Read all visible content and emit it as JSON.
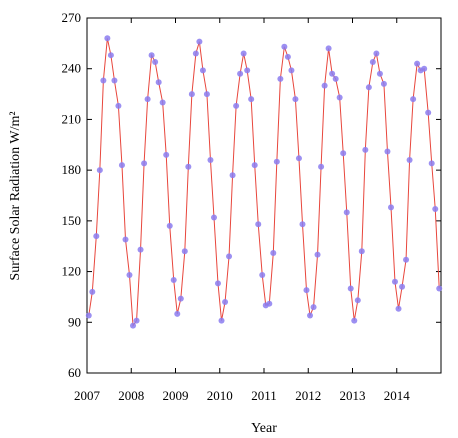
{
  "chart_data": {
    "type": "line",
    "title": "",
    "xlabel": "Year",
    "ylabel": "Surface Solar Radiation W/m²",
    "xlim": [
      2007,
      2015
    ],
    "ylim": [
      60,
      270
    ],
    "x_ticks": [
      "2007",
      "2008",
      "2009",
      "2010",
      "2011",
      "2012",
      "2013",
      "2014"
    ],
    "y_ticks": [
      "60",
      "90",
      "120",
      "150",
      "180",
      "210",
      "240",
      "270"
    ],
    "grid": false,
    "legend": "none",
    "colors": {
      "line": "#e8463c",
      "marker": "#8b7cf0"
    },
    "series": [
      {
        "name": "",
        "x": [
          2007.04,
          2007.12,
          2007.21,
          2007.29,
          2007.37,
          2007.46,
          2007.54,
          2007.62,
          2007.71,
          2007.79,
          2007.87,
          2007.96,
          2008.04,
          2008.12,
          2008.21,
          2008.29,
          2008.37,
          2008.46,
          2008.54,
          2008.62,
          2008.71,
          2008.79,
          2008.87,
          2008.96,
          2009.04,
          2009.12,
          2009.21,
          2009.29,
          2009.37,
          2009.46,
          2009.54,
          2009.62,
          2009.71,
          2009.79,
          2009.87,
          2009.96,
          2010.04,
          2010.12,
          2010.21,
          2010.29,
          2010.37,
          2010.46,
          2010.54,
          2010.62,
          2010.71,
          2010.79,
          2010.87,
          2010.96,
          2011.04,
          2011.12,
          2011.21,
          2011.29,
          2011.37,
          2011.46,
          2011.54,
          2011.62,
          2011.71,
          2011.79,
          2011.87,
          2011.96,
          2012.04,
          2012.12,
          2012.21,
          2012.29,
          2012.37,
          2012.46,
          2012.54,
          2012.62,
          2012.71,
          2012.79,
          2012.87,
          2012.96,
          2013.04,
          2013.12,
          2013.21,
          2013.29,
          2013.37,
          2013.46,
          2013.54,
          2013.62,
          2013.71,
          2013.79,
          2013.87,
          2013.96,
          2014.04,
          2014.12,
          2014.21,
          2014.29,
          2014.37,
          2014.46,
          2014.54,
          2014.62,
          2014.71,
          2014.79,
          2014.87,
          2014.96
        ],
        "y": [
          94,
          108,
          141,
          180,
          233,
          258,
          248,
          233,
          218,
          183,
          139,
          118,
          88,
          91,
          133,
          184,
          222,
          248,
          244,
          232,
          220,
          189,
          147,
          115,
          95,
          104,
          132,
          182,
          225,
          249,
          256,
          239,
          225,
          186,
          152,
          113,
          91,
          102,
          129,
          177,
          218,
          237,
          249,
          239,
          222,
          183,
          148,
          118,
          100,
          101,
          131,
          185,
          234,
          253,
          247,
          239,
          222,
          187,
          148,
          109,
          94,
          99,
          130,
          182,
          230,
          252,
          237,
          234,
          223,
          190,
          155,
          110,
          91,
          103,
          132,
          192,
          229,
          244,
          249,
          237,
          231,
          191,
          158,
          114,
          98,
          111,
          127,
          186,
          222,
          243,
          239,
          240,
          214,
          184,
          157,
          110
        ]
      }
    ]
  }
}
